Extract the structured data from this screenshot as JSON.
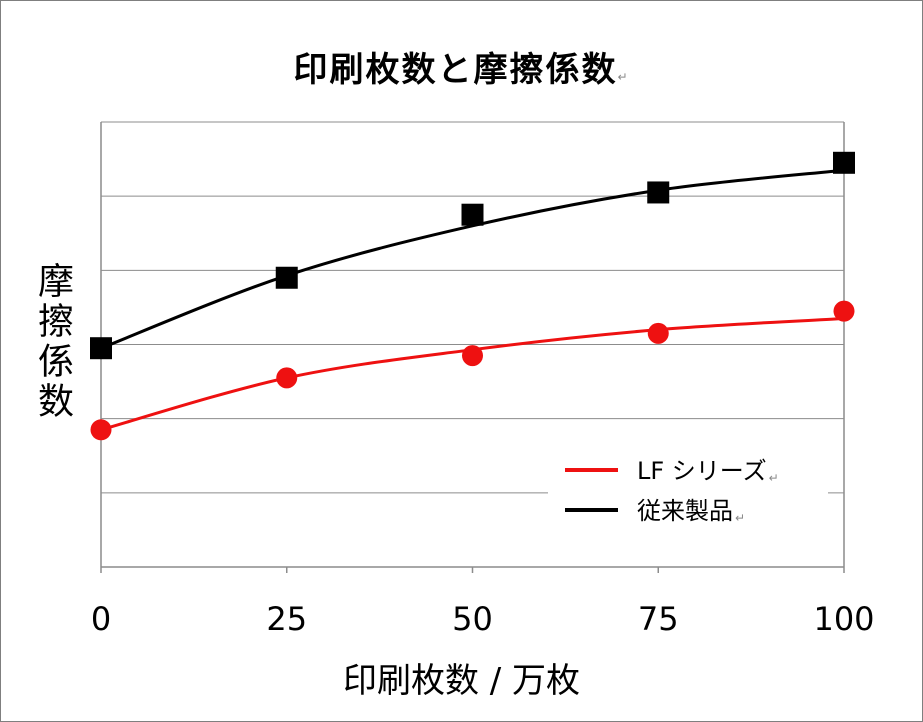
{
  "chart_data": {
    "type": "line",
    "title": "印刷枚数と摩擦係数",
    "xlabel": "印刷枚数 / 万枚",
    "ylabel": "摩擦係数",
    "x": [
      0,
      25,
      50,
      75,
      100
    ],
    "x_tick_labels": [
      "0",
      "25",
      "50",
      "75",
      "100"
    ],
    "xlim": [
      0,
      100
    ],
    "ylim": [
      0,
      6
    ],
    "y_tick_labels_shown": false,
    "grid": true,
    "legend_position": "bottom-right",
    "series": [
      {
        "name": "LF シリーズ",
        "color": "#ee1111",
        "marker": "circle",
        "values": [
          1.85,
          2.55,
          2.85,
          3.15,
          3.45
        ],
        "trend": [
          1.85,
          2.55,
          2.93,
          3.2,
          3.35
        ]
      },
      {
        "name": "従来製品",
        "color": "#000000",
        "marker": "square",
        "values": [
          2.95,
          3.9,
          4.75,
          5.05,
          5.45
        ],
        "trend": [
          2.95,
          3.93,
          4.6,
          5.08,
          5.35
        ]
      }
    ]
  },
  "return_marks": {
    "title": "↵",
    "legend_1": "↵",
    "legend_2": "↵"
  }
}
